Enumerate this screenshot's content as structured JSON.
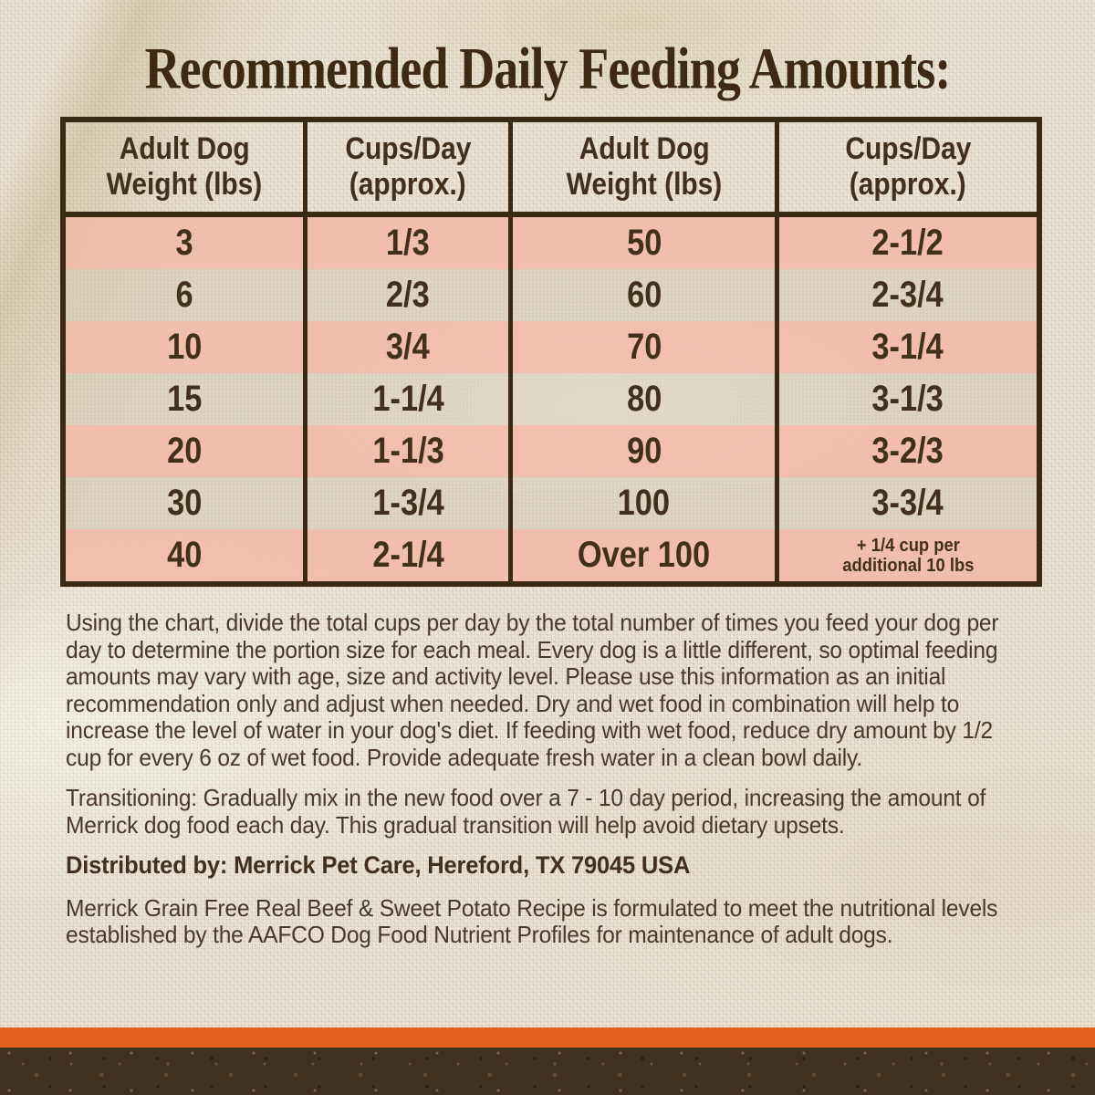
{
  "title": "Recommended Daily Feeding Amounts:",
  "table": {
    "headers": [
      {
        "line1": "Adult Dog",
        "line2": "Weight (lbs)"
      },
      {
        "line1": "Cups/Day",
        "line2": "(approx.)"
      },
      {
        "line1": "Adult Dog",
        "line2": "Weight (lbs)"
      },
      {
        "line1": "Cups/Day",
        "line2": "(approx.)"
      }
    ],
    "rows": [
      {
        "weight_left": "3",
        "cups_left": "1/3",
        "weight_right": "50",
        "cups_right": "2-1/2"
      },
      {
        "weight_left": "6",
        "cups_left": "2/3",
        "weight_right": "60",
        "cups_right": "2-3/4"
      },
      {
        "weight_left": "10",
        "cups_left": "3/4",
        "weight_right": "70",
        "cups_right": "3-1/4"
      },
      {
        "weight_left": "15",
        "cups_left": "1-1/4",
        "weight_right": "80",
        "cups_right": "3-1/3"
      },
      {
        "weight_left": "20",
        "cups_left": "1-1/3",
        "weight_right": "90",
        "cups_right": "3-2/3"
      },
      {
        "weight_left": "30",
        "cups_left": "1-3/4",
        "weight_right": "100",
        "cups_right": "3-3/4"
      },
      {
        "weight_left": "40",
        "cups_left": "2-1/4",
        "weight_right": "Over 100",
        "cups_right_note_line1": "+ 1/4 cup per",
        "cups_right_note_line2": "additional 10 lbs"
      }
    ]
  },
  "paragraphs": {
    "usage": "Using the chart, divide the total cups per day by the total number of times you feed your dog per day to determine the portion size for each meal. Every dog is a little different, so optimal feeding amounts may vary with age, size and activity level. Please use this information as an initial recommendation only and adjust when needed. Dry and wet food in combination will help to increase the level of water in your dog's diet. If feeding with wet food, reduce dry amount by 1/2 cup for every 6 oz of wet food. Provide adequate fresh water in a clean bowl daily.",
    "transitioning": "Transitioning: Gradually mix in the new food over a 7 - 10 day period, increasing the amount of Merrick dog food each day. This gradual transition will help avoid dietary upsets.",
    "distributed_by": "Distributed by: Merrick Pet Care, Hereford, TX 79045 USA",
    "aafco": "Merrick Grain Free Real Beef & Sweet Potato Recipe is formulated to meet the nutritional levels established by the AAFCO Dog Food Nutrient Profiles for maintenance of adult dogs."
  },
  "colors": {
    "title_text": "#3e2a12",
    "table_border": "#3a2913",
    "cell_text": "#41301b",
    "body_text": "#49392a",
    "row_pink": "#f2c1b1",
    "row_cream": "#d3cbb3",
    "background": "#e9e3d3",
    "orange_stripe": "#e5601b",
    "soil_brown": "#42301f"
  }
}
